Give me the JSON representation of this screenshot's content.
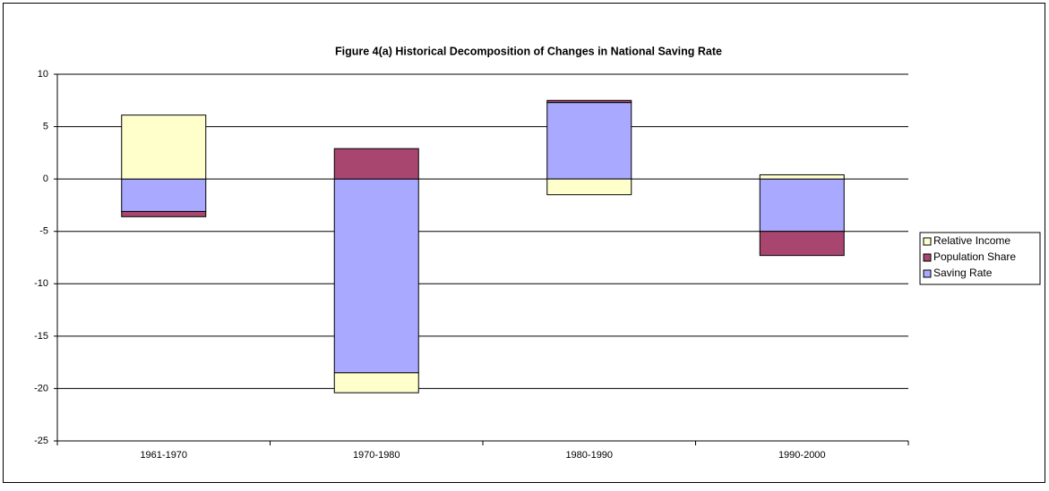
{
  "chart_data": {
    "type": "stacked-bar",
    "title": "Figure 4(a) Historical Decomposition of Changes in  National Saving Rate",
    "categories": [
      "1961-1970",
      "1970-1980",
      "1980-1990",
      "1990-2000"
    ],
    "series": [
      {
        "name": "Saving Rate",
        "color": "#a9a9ff",
        "values": [
          -3.1,
          -18.5,
          7.3,
          -5.0
        ]
      },
      {
        "name": "Population Share",
        "color": "#a8466f",
        "values": [
          -0.5,
          2.9,
          0.2,
          -2.3
        ]
      },
      {
        "name": "Relative Income",
        "color": "#ffffcc",
        "values": [
          6.1,
          -1.9,
          -1.5,
          0.4
        ]
      }
    ],
    "ylim": [
      -25,
      10
    ],
    "yticks": [
      -25,
      -20,
      -15,
      -10,
      -5,
      0,
      5,
      10
    ],
    "grid": true,
    "legend": "right"
  }
}
